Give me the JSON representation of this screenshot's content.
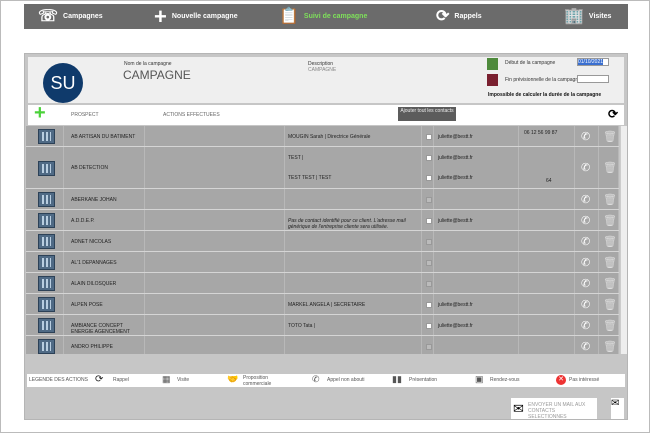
{
  "nav": [
    {
      "label": "Campagnes",
      "icon": "campaigns-icon"
    },
    {
      "label": "Nouvelle campagne",
      "icon": "plus-icon"
    },
    {
      "label": "Suivi de campagne",
      "icon": "clipboard-icon",
      "active": true
    },
    {
      "label": "Rappels",
      "icon": "callback-icon"
    },
    {
      "label": "Visites",
      "icon": "map-building-icon"
    }
  ],
  "header": {
    "avatar": "SU",
    "name_label": "Nom de la campagne",
    "name": "CAMPAGNE",
    "desc_label": "Description",
    "desc": "CAMPAGNE",
    "start_label": "Début de la campagne",
    "start_value": "01/10/2021",
    "end_label": "Fin prévisionnelle de la campagne",
    "end_value": "",
    "duration_msg": "Impossible de calculer la durée de la campagne"
  },
  "toolbar": {
    "col_prospect": "PROSPECT",
    "col_actions": "ACTIONS EFFECTUEES",
    "add_all": "Ajouter tout les contacts"
  },
  "rows": [
    {
      "name": "AB ARTISAN DU BATIMENT",
      "contacts": [
        {
          "label": "MOUGIN Sarah | Directrice Générale",
          "email": "juliette@bestt.fr"
        }
      ],
      "phone": "06 12 56 99 87"
    },
    {
      "name": "AB DETECTION",
      "contacts": [
        {
          "label": "TEST  |",
          "email": "juliette@bestt.fr"
        },
        {
          "label": "TEST TEST | TEST",
          "email": "juliette@bestt.fr"
        }
      ],
      "phone": "64"
    },
    {
      "name": "ABERKANE JOHAN",
      "contacts": [],
      "phone": ""
    },
    {
      "name": "A.D.D.E.P.",
      "contacts": [
        {
          "label": "Pas de contact identifié pour ce client. L'adresse mail générique de l'entreprise cliente sera utilisée.",
          "email": "juliette@bestt.fr",
          "italic": true
        }
      ],
      "phone": ""
    },
    {
      "name": "ADNET NICOLAS",
      "contacts": [],
      "phone": ""
    },
    {
      "name": "AL'1 DEPANNAGES",
      "contacts": [],
      "phone": ""
    },
    {
      "name": "ALAIN DILOSQUER",
      "contacts": [],
      "phone": ""
    },
    {
      "name": "ALPEN POSE",
      "contacts": [
        {
          "label": "MARKEL ANGELA | SECRETAIRE",
          "email": "juliette@bestt.fr"
        }
      ],
      "phone": ""
    },
    {
      "name": "AMBIANCE CONCEPT ENERGIE AGENCEMENT",
      "contacts": [
        {
          "label": "TOTO Tata |",
          "email": "juliette@bestt.fr"
        }
      ],
      "phone": ""
    },
    {
      "name": "ANDRO PHILIPPE",
      "contacts": [],
      "phone": ""
    }
  ],
  "legend": {
    "title": "LEGENDE DES ACTIONS",
    "items": [
      "Rappel",
      "Visite",
      "Proposition commerciale",
      "Appel non abouti",
      "Présentation",
      "Rendez-vous",
      "Pas intéressé"
    ]
  },
  "mail_button": "ENVOYER UN MAIL AUX CONTACTS SELECTIONNES",
  "colors": {
    "nav": "#6b6b6b",
    "active": "#7ee05a",
    "avatar": "#0f3a6b",
    "row": "#a7a7a7"
  }
}
